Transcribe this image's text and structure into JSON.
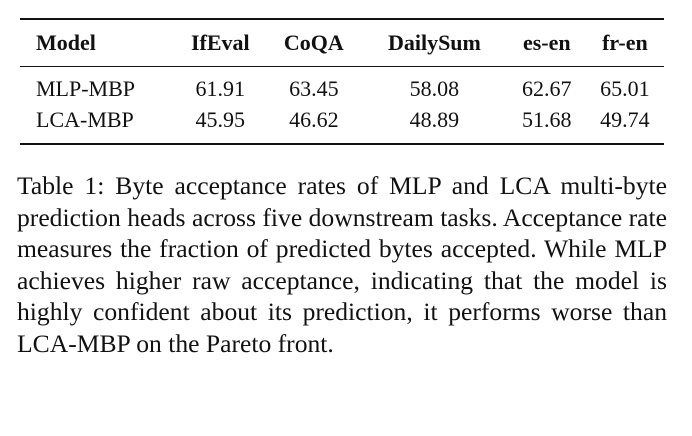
{
  "table": {
    "columns": [
      "Model",
      "IfEval",
      "CoQA",
      "DailySum",
      "es-en",
      "fr-en"
    ],
    "rows": [
      [
        "MLP-MBP",
        "61.91",
        "63.45",
        "58.08",
        "62.67",
        "65.01"
      ],
      [
        "LCA-MBP",
        "45.95",
        "46.62",
        "48.89",
        "51.68",
        "49.74"
      ]
    ]
  },
  "caption": {
    "label": "Table 1:",
    "text": "Byte acceptance rates of MLP and LCA multi-byte prediction heads across five downstream tasks. Acceptance rate measures the fraction of predicted bytes accepted. While MLP achieves higher raw acceptance, indicating that the model is highly confident about its prediction, it performs worse than LCA-MBP on the Pareto front."
  }
}
